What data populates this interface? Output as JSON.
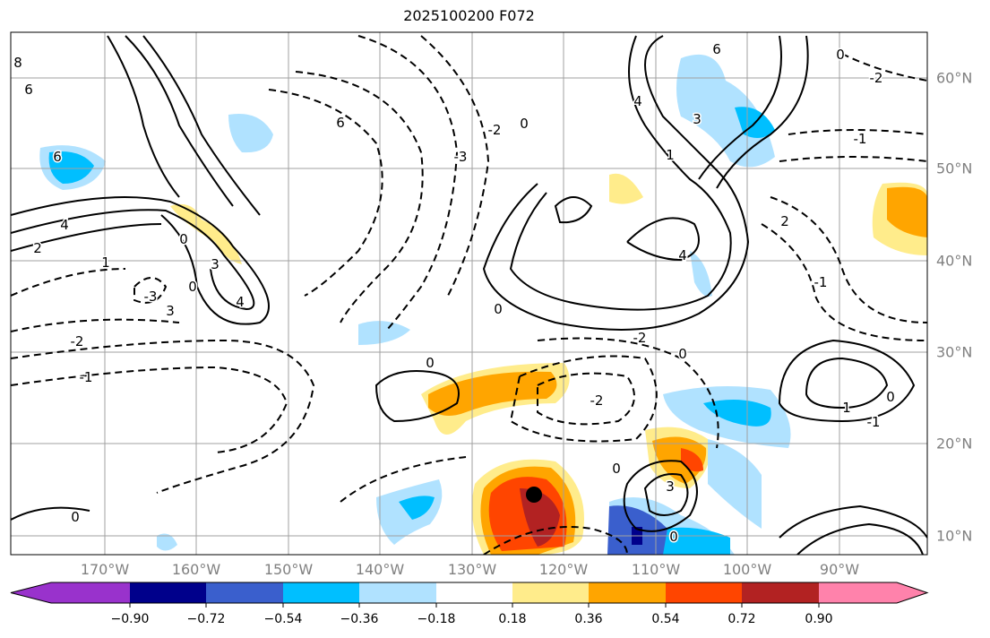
{
  "title": "2025100200 F072",
  "lon_labels": [
    "170°W",
    "160°W",
    "150°W",
    "140°W",
    "130°W",
    "120°W",
    "110°W",
    "100°W",
    "90°W"
  ],
  "lat_labels": [
    "60°N",
    "50°N",
    "40°N",
    "30°N",
    "20°N",
    "10°N"
  ],
  "colorbar": {
    "ticks": [
      "−0.90",
      "−0.72",
      "−0.54",
      "−0.36",
      "−0.18",
      "0.18",
      "0.36",
      "0.54",
      "0.72",
      "0.90"
    ],
    "colors": [
      "#9932cc",
      "#00008b",
      "#3a5fcd",
      "#00bfff",
      "#b0e2ff",
      "#ffffff",
      "#ffec8b",
      "#ffa500",
      "#ff4500",
      "#b22222",
      "#ff82ab"
    ]
  },
  "contour_labels": [
    "8",
    "6",
    "6",
    "4",
    "2",
    "1",
    "3",
    "3",
    "4",
    "0",
    "0",
    "-2",
    "-1",
    "-3",
    "6",
    "-3",
    "-2",
    "0",
    "0",
    "4",
    "3",
    "1",
    "6",
    "4",
    "0",
    "-2",
    "-1",
    "-2",
    "0",
    "1",
    "0",
    "3",
    "-2",
    "-1",
    "0",
    "2",
    "-1",
    "0",
    "0",
    "0"
  ],
  "marker": "storm-center"
}
